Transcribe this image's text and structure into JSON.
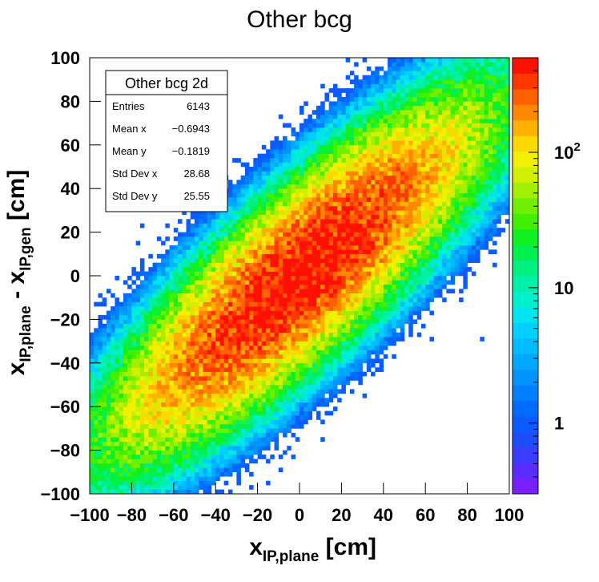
{
  "chart_data": {
    "type": "heatmap",
    "title": "Other bcg",
    "xlabel": {
      "main": "x",
      "sub": "IP,plane",
      "unit": " [cm]"
    },
    "ylabel": {
      "main1": "x",
      "sub1": "IP,plane",
      "mid": " - x",
      "sub2": "IP,gen",
      "unit": " [cm]"
    },
    "xlim": [
      -100,
      100
    ],
    "ylim": [
      -100,
      100
    ],
    "xticks": [
      "−100",
      "−80",
      "−60",
      "−40",
      "−20",
      "0",
      "20",
      "40",
      "60",
      "80",
      "100"
    ],
    "yticks": [
      "−100",
      "−80",
      "−60",
      "−40",
      "−20",
      "0",
      "20",
      "40",
      "60",
      "80",
      "100"
    ],
    "bins": {
      "nx": 100,
      "ny": 100,
      "bin_width_cm": 2
    },
    "colorbar": {
      "scale": "log",
      "range": [
        0.3,
        500
      ],
      "tick_labels": [
        {
          "value": 1,
          "text": "1"
        },
        {
          "value": 10,
          "text": "10"
        },
        {
          "value": 100,
          "base": "10",
          "exp": "2"
        }
      ]
    },
    "z_model": {
      "description": "log-normal-like density with correlation ~0.85, peak ~500 near (0,0)",
      "peak": 500,
      "correlation": 0.85
    },
    "stats_box": {
      "title": "Other bcg 2d",
      "rows": [
        {
          "label": "Entries",
          "value": "6143"
        },
        {
          "label": "Mean x",
          "value": "−0.6943"
        },
        {
          "label": "Mean y",
          "value": "−0.1819"
        },
        {
          "label": "Std Dev x",
          "value": "28.68"
        },
        {
          "label": "Std Dev y",
          "value": "25.55"
        }
      ]
    }
  }
}
